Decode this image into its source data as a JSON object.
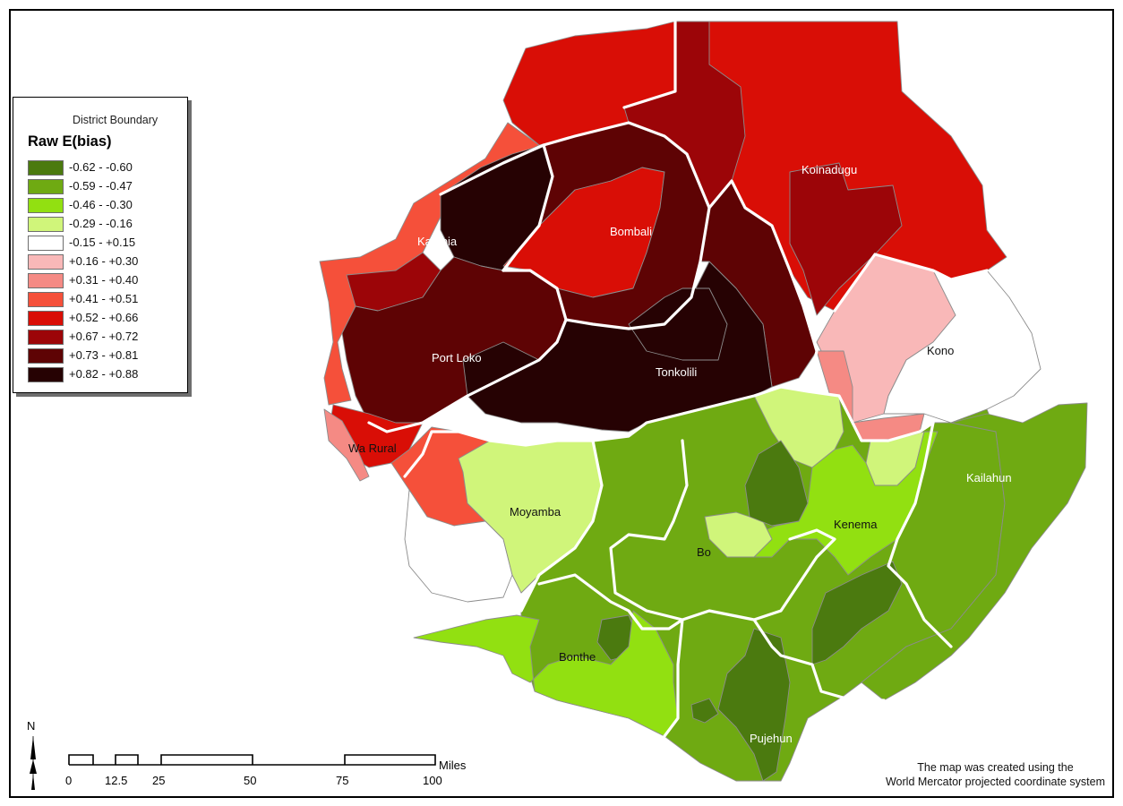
{
  "legend": {
    "boundary_title": "District Boundary",
    "title": "Raw E(bias)",
    "classes": [
      {
        "label": "-0.62 - -0.60",
        "color": "#4b7a0f"
      },
      {
        "label": "-0.59 - -0.47",
        "color": "#6faa12"
      },
      {
        "label": "-0.46 - -0.30",
        "color": "#92e011"
      },
      {
        "label": "-0.29 - -0.16",
        "color": "#d0f57a"
      },
      {
        "label": "-0.15 - +0.15",
        "color": "#ffffff"
      },
      {
        "label": "+0.16 - +0.30",
        "color": "#f9b8b8"
      },
      {
        "label": "+0.31 - +0.40",
        "color": "#f58a84"
      },
      {
        "label": "+0.41 - +0.51",
        "color": "#f5503a"
      },
      {
        "label": "+0.52 - +0.66",
        "color": "#d90e06"
      },
      {
        "label": "+0.67 - +0.72",
        "color": "#9c0508"
      },
      {
        "label": "+0.73 - +0.81",
        "color": "#5e0304"
      },
      {
        "label": "+0.82 - +0.88",
        "color": "#260203"
      }
    ]
  },
  "districts": [
    {
      "name": "Koinadugu",
      "label_color": "light"
    },
    {
      "name": "Bombali",
      "label_color": "light"
    },
    {
      "name": "Kambia",
      "label_color": "light"
    },
    {
      "name": "Port Loko",
      "label_color": "light"
    },
    {
      "name": "Tonkolili",
      "label_color": "light"
    },
    {
      "name": "Kono",
      "label_color": "dark"
    },
    {
      "name": "Wa Rural",
      "label_color": "dark"
    },
    {
      "name": "Kailahun",
      "label_color": "light"
    },
    {
      "name": "Moyamba",
      "label_color": "dark"
    },
    {
      "name": "Kenema",
      "label_color": "dark"
    },
    {
      "name": "Bo",
      "label_color": "dark"
    },
    {
      "name": "Bonthe",
      "label_color": "dark"
    },
    {
      "name": "Pujehun",
      "label_color": "light"
    }
  ],
  "scale_bar": {
    "unit": "Miles",
    "ticks": [
      "0",
      "12.5",
      "25",
      "50",
      "75",
      "100"
    ]
  },
  "north_arrow": {
    "label": "N"
  },
  "credit": {
    "line1": "The map was created using the",
    "line2": "World Mercator projected coordinate system"
  }
}
